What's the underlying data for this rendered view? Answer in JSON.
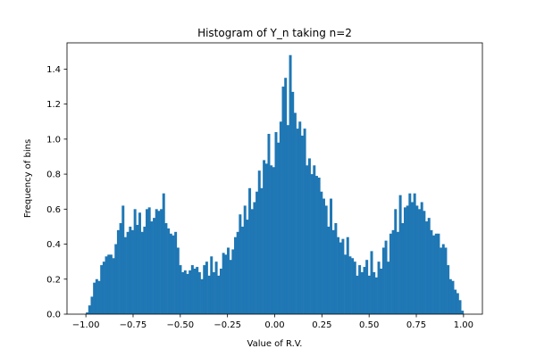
{
  "chart_data": {
    "type": "bar",
    "title": "Histogram of Y_n taking n=2",
    "xlabel": "Value of R.V.",
    "ylabel": "Frequency of bins",
    "xlim": [
      -1.1,
      1.1
    ],
    "ylim": [
      0,
      1.55
    ],
    "xticks": [
      -1.0,
      -0.75,
      -0.5,
      -0.25,
      0.0,
      0.25,
      0.5,
      0.75,
      1.0
    ],
    "xtick_labels": [
      "−1.00",
      "−0.75",
      "−0.50",
      "−0.25",
      "0.00",
      "0.25",
      "0.50",
      "0.75",
      "1.00"
    ],
    "yticks": [
      0.0,
      0.2,
      0.4,
      0.6,
      0.8,
      1.0,
      1.2,
      1.4
    ],
    "ytick_labels": [
      "0.0",
      "0.2",
      "0.4",
      "0.6",
      "0.8",
      "1.0",
      "1.2",
      "1.4"
    ],
    "bar_color": "#1f77b4",
    "grid": false,
    "bin_range": [
      -1.0,
      1.0
    ],
    "values": [
      0.01,
      0.05,
      0.1,
      0.18,
      0.2,
      0.19,
      0.28,
      0.3,
      0.33,
      0.34,
      0.34,
      0.32,
      0.4,
      0.48,
      0.52,
      0.62,
      0.44,
      0.47,
      0.5,
      0.48,
      0.6,
      0.51,
      0.58,
      0.47,
      0.5,
      0.6,
      0.61,
      0.53,
      0.55,
      0.6,
      0.59,
      0.6,
      0.69,
      0.52,
      0.49,
      0.46,
      0.45,
      0.47,
      0.38,
      0.28,
      0.24,
      0.25,
      0.23,
      0.25,
      0.28,
      0.26,
      0.27,
      0.24,
      0.2,
      0.28,
      0.3,
      0.22,
      0.33,
      0.24,
      0.3,
      0.22,
      0.26,
      0.35,
      0.34,
      0.38,
      0.31,
      0.37,
      0.44,
      0.47,
      0.57,
      0.5,
      0.62,
      0.54,
      0.72,
      0.6,
      0.64,
      0.7,
      0.82,
      0.72,
      0.88,
      0.86,
      1.03,
      0.85,
      0.84,
      1.04,
      0.98,
      1.1,
      1.3,
      1.35,
      1.08,
      1.48,
      1.27,
      1.15,
      1.06,
      1.1,
      1.02,
      1.06,
      0.85,
      0.89,
      0.8,
      0.85,
      0.79,
      0.78,
      0.7,
      0.66,
      0.62,
      0.5,
      0.66,
      0.48,
      0.52,
      0.44,
      0.41,
      0.43,
      0.34,
      0.44,
      0.33,
      0.32,
      0.3,
      0.22,
      0.28,
      0.24,
      0.27,
      0.31,
      0.22,
      0.36,
      0.24,
      0.21,
      0.3,
      0.26,
      0.38,
      0.42,
      0.3,
      0.46,
      0.48,
      0.6,
      0.47,
      0.68,
      0.52,
      0.61,
      0.62,
      0.69,
      0.64,
      0.69,
      0.62,
      0.6,
      0.64,
      0.59,
      0.53,
      0.55,
      0.48,
      0.45,
      0.46,
      0.46,
      0.38,
      0.4,
      0.38,
      0.28,
      0.2,
      0.19,
      0.14,
      0.12,
      0.08,
      0.02
    ]
  }
}
